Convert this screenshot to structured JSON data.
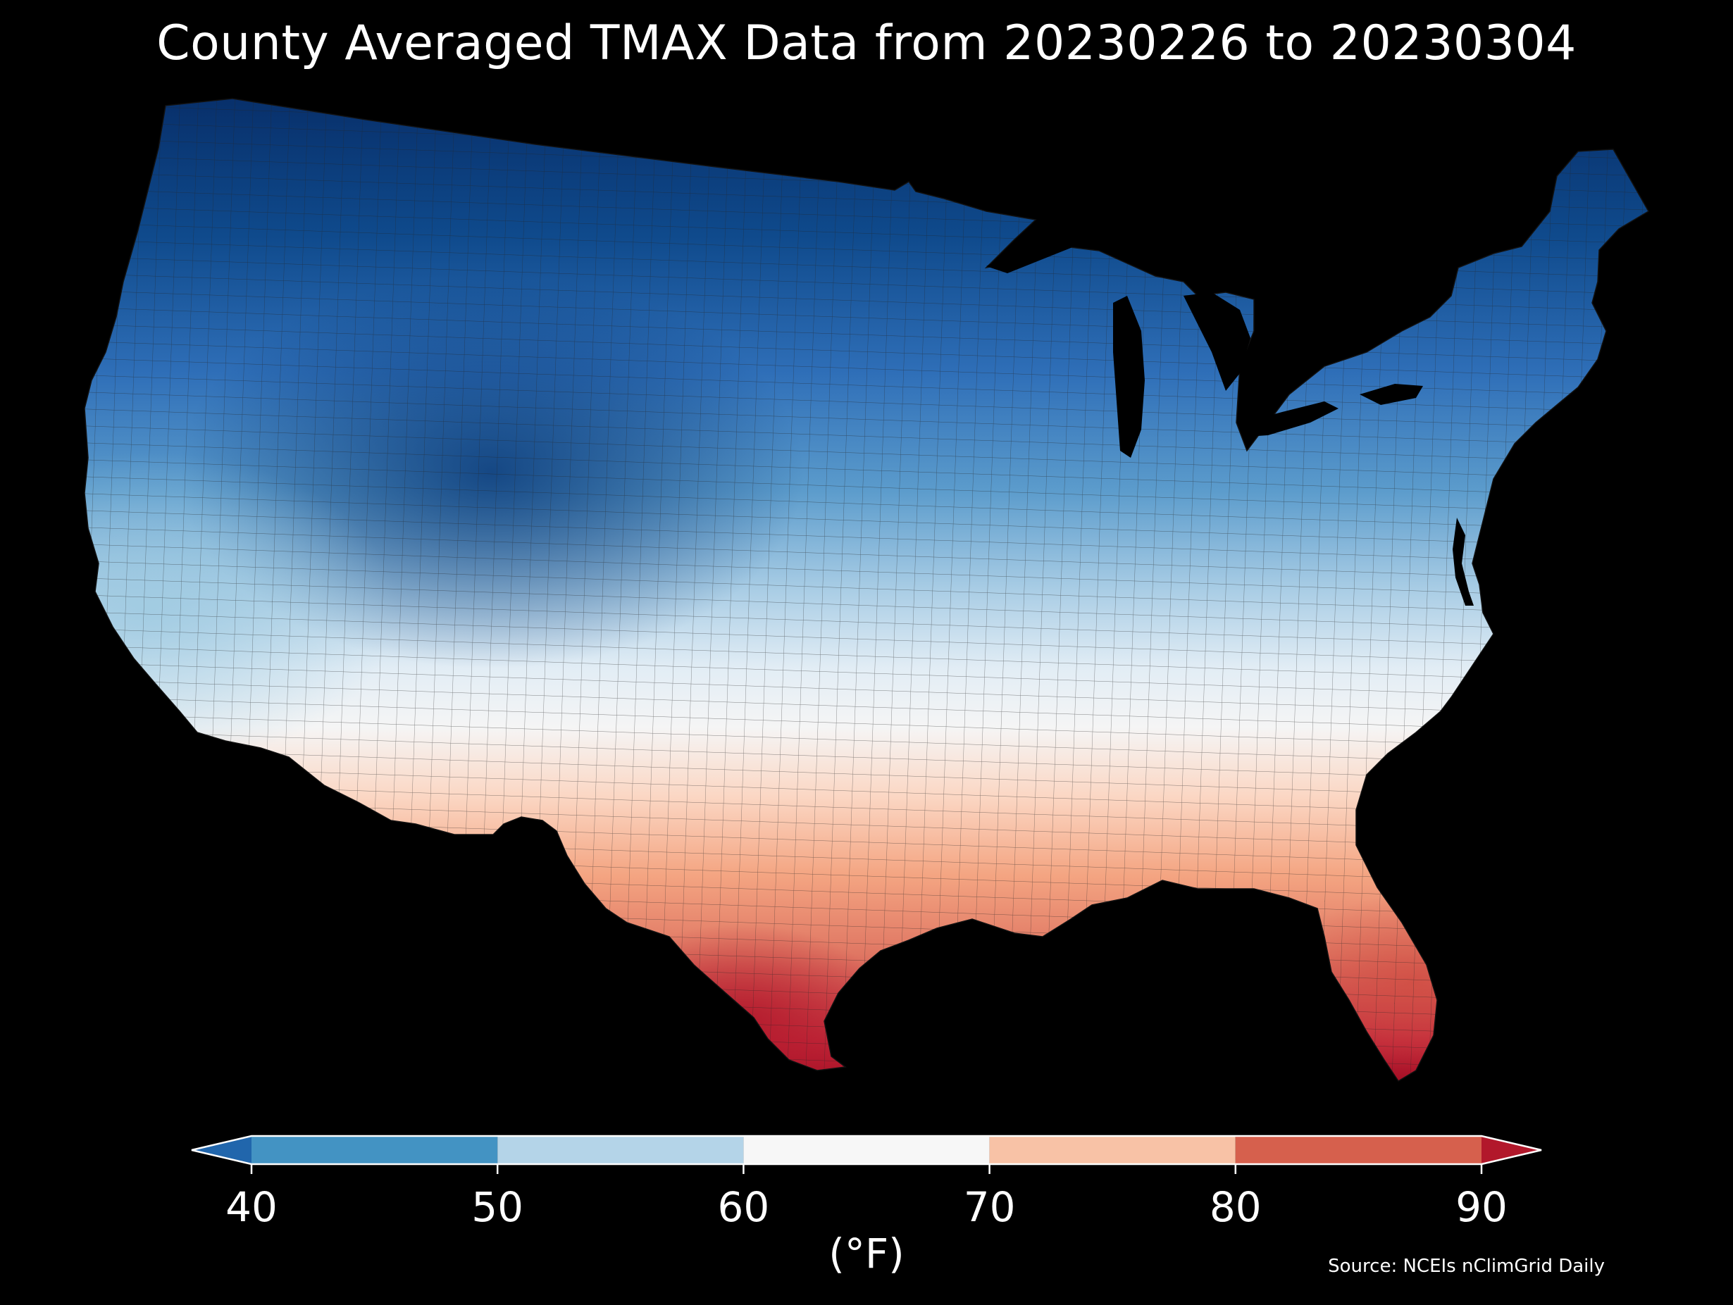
{
  "title": "County Averaged TMAX Data from 20230226 to 20230304",
  "units": "(°F)",
  "source": "Source: NCEIs nClimGrid Daily",
  "colorbar": {
    "ticks": [
      "40",
      "50",
      "60",
      "70",
      "80",
      "90"
    ],
    "bins": [
      {
        "range": [
          40,
          50
        ],
        "color": "#4393c3"
      },
      {
        "range": [
          50,
          60
        ],
        "color": "#b4d4e8"
      },
      {
        "range": [
          60,
          70
        ],
        "color": "#f7f7f7"
      },
      {
        "range": [
          70,
          80
        ],
        "color": "#f8c2a6"
      },
      {
        "range": [
          80,
          90
        ],
        "color": "#d6604d"
      }
    ],
    "under_color": "#2166ac",
    "over_color": "#b2182b"
  },
  "map": {
    "region": "Contiguous United States",
    "palette": {
      "cold": "#08306b",
      "cool": "#2f6fb8",
      "mild": "#9ecae1",
      "neutral": "#f7f7f7",
      "warm": "#f4a582",
      "hot": "#c2283a"
    },
    "background": "#000000"
  }
}
